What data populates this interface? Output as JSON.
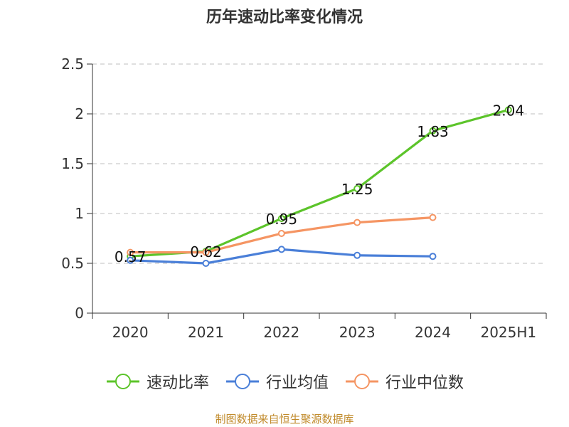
{
  "chart_data": {
    "type": "line",
    "title": "历年速动比率变化情况",
    "categories": [
      "2020",
      "2021",
      "2022",
      "2023",
      "2024",
      "2025H1"
    ],
    "yticks": [
      "0",
      "0.5",
      "1",
      "1.5",
      "2",
      "2.5"
    ],
    "ylim": [
      0,
      2.5
    ],
    "grid": true,
    "legend_position": "bottom",
    "series": [
      {
        "name": "速动比率",
        "color": "#5cc42a",
        "values": [
          0.57,
          0.62,
          0.95,
          1.25,
          1.83,
          2.04
        ],
        "labels": [
          "0.57",
          "0.62",
          "0.95",
          "1.25",
          "1.83",
          "2.04"
        ],
        "show_labels": true
      },
      {
        "name": "行业均值",
        "color": "#4a7fd8",
        "values": [
          0.53,
          0.5,
          0.64,
          0.58,
          0.57,
          null
        ],
        "labels": [],
        "show_labels": false
      },
      {
        "name": "行业中位数",
        "color": "#f59563",
        "values": [
          0.61,
          0.61,
          0.8,
          0.91,
          0.96,
          null
        ],
        "labels": [],
        "show_labels": false
      }
    ]
  },
  "footer": "制图数据来自恒生聚源数据库"
}
